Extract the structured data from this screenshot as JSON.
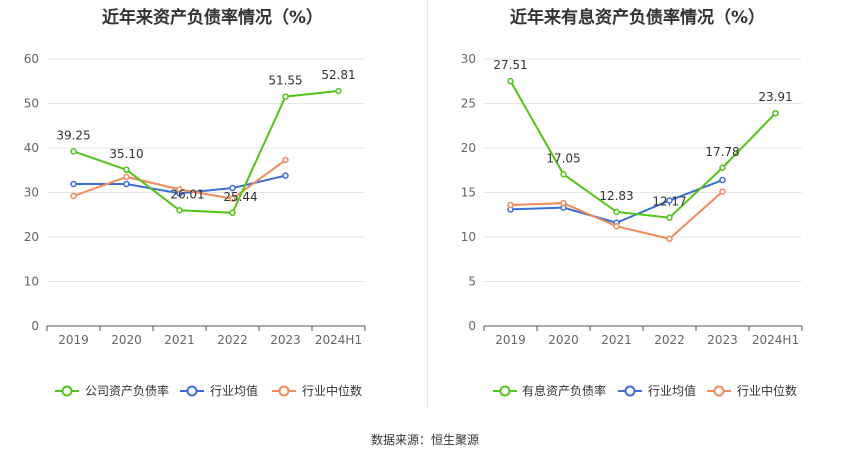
{
  "source_label": "数据来源：恒生聚源",
  "chart_data": [
    {
      "type": "line",
      "title": "近年来资产负债率情况（%）",
      "categories": [
        "2019",
        "2020",
        "2021",
        "2022",
        "2023",
        "2024H1"
      ],
      "ylim": [
        0,
        60
      ],
      "yticks": [
        0,
        10,
        20,
        30,
        40,
        50,
        60
      ],
      "grid": true,
      "legend_position": "bottom",
      "series": [
        {
          "name": "公司资产负债率",
          "color": "#52c41a",
          "values": [
            39.25,
            35.1,
            26.01,
            25.44,
            51.55,
            52.81
          ],
          "labels": [
            "39.25",
            "35.10",
            "26.01",
            "25.44",
            "51.55",
            "52.81"
          ]
        },
        {
          "name": "行业均值",
          "color": "#3b6fd4",
          "values": [
            31.9,
            31.9,
            29.8,
            31.0,
            33.8,
            null
          ]
        },
        {
          "name": "行业中位数",
          "color": "#f08c5a",
          "values": [
            29.2,
            33.5,
            30.7,
            28.6,
            37.3,
            null
          ]
        }
      ]
    },
    {
      "type": "line",
      "title": "近年来有息资产负债率情况（%）",
      "categories": [
        "2019",
        "2020",
        "2021",
        "2022",
        "2023",
        "2024H1"
      ],
      "ylim": [
        0,
        30
      ],
      "yticks": [
        0,
        5,
        10,
        15,
        20,
        25,
        30
      ],
      "grid": true,
      "legend_position": "bottom",
      "series": [
        {
          "name": "有息资产负债率",
          "color": "#52c41a",
          "values": [
            27.51,
            17.05,
            12.83,
            12.17,
            17.78,
            23.91
          ],
          "labels": [
            "27.51",
            "17.05",
            "12.83",
            "12.17",
            "17.78",
            "23.91"
          ]
        },
        {
          "name": "行业均值",
          "color": "#3b6fd4",
          "values": [
            13.1,
            13.3,
            11.6,
            14.1,
            16.4,
            null
          ]
        },
        {
          "name": "行业中位数",
          "color": "#f08c5a",
          "values": [
            13.6,
            13.8,
            11.2,
            9.8,
            15.1,
            null
          ]
        }
      ]
    }
  ]
}
